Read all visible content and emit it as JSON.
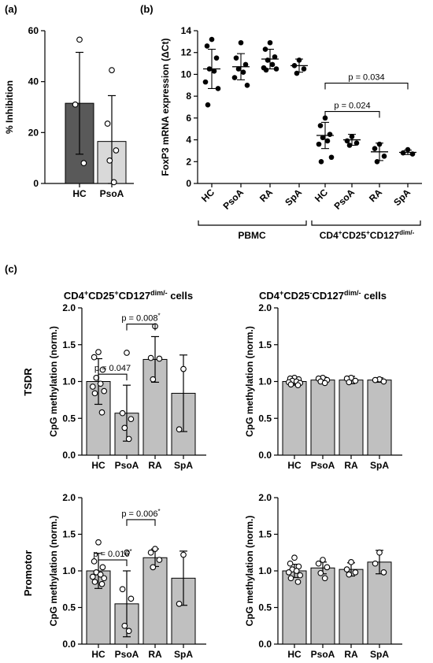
{
  "panel_labels": {
    "a": "(a)",
    "b": "(b)",
    "c": "(c)"
  },
  "row_labels": {
    "tsdr": "TSDR",
    "promotor": "Promotor"
  },
  "column_titles": {
    "left": {
      "prefix": "CD4",
      "sup1": "+",
      "mid1": "CD25",
      "sup2": "+",
      "mid2": "CD127",
      "sup3": "dim/-",
      "suffix": " cells"
    },
    "right": {
      "prefix": "CD4",
      "sup1": "+",
      "mid1": "CD25",
      "sup2": "-",
      "mid2": "CD127",
      "sup3": "dim/-",
      "suffix": " cells"
    }
  },
  "group_labels_b": {
    "pbmc": "PBMC",
    "sorted": {
      "prefix": "CD4",
      "sup1": "+",
      "mid1": "CD25",
      "sup2": "+",
      "mid2": "CD127",
      "sup3": "dim/-"
    }
  },
  "colors": {
    "hc_dark": "#595959",
    "light": "#d9d9d9",
    "bar_gray": "#c0c0c0",
    "axis": "#000000"
  },
  "chart_data": [
    {
      "id": "a",
      "type": "bar",
      "ylabel": "% Inhibition",
      "ylim": [
        0,
        60
      ],
      "yticks": [
        0,
        20,
        40,
        60
      ],
      "categories": [
        "HC",
        "PsoA"
      ],
      "values": [
        31.5,
        16.5
      ],
      "sd": [
        20,
        18
      ],
      "bar_colors": [
        "#595959",
        "#d9d9d9"
      ],
      "points": [
        [
          56.5,
          31,
          8
        ],
        [
          44.5,
          23.5,
          13,
          9,
          0.5
        ]
      ],
      "brackets": []
    },
    {
      "id": "b",
      "type": "scatter",
      "ylabel": "FoxP3 mRNA expression (ΔCt)",
      "ylim": [
        0,
        14
      ],
      "yticks": [
        0,
        2,
        4,
        6,
        8,
        10,
        12,
        14
      ],
      "categories": [
        "HC",
        "PsoA",
        "RA",
        "SpA",
        "HC",
        "PsoA",
        "RA",
        "SpA"
      ],
      "means": [
        10.5,
        10.7,
        11.4,
        10.8,
        4.4,
        4.0,
        2.9,
        2.85
      ],
      "sd": [
        1.8,
        1.2,
        0.9,
        0.6,
        1.2,
        0.5,
        0.8,
        0.2
      ],
      "points": [
        [
          13.2,
          12.6,
          11.5,
          10.5,
          10.3,
          9.3,
          8.7,
          7.2
        ],
        [
          12.9,
          11.5,
          10.9,
          10.5,
          10.2,
          9.7,
          9.0
        ],
        [
          12.9,
          12.3,
          11.6,
          11.3,
          10.9,
          10.6,
          10.5,
          10.4
        ],
        [
          11.3,
          10.8,
          10.5,
          10.1
        ],
        [
          6.0,
          5.3,
          4.5,
          4.2,
          3.9,
          3.6,
          2.4,
          2.0
        ],
        [
          4.3,
          3.9,
          3.7,
          3.5
        ],
        [
          3.6,
          3.2,
          2.5,
          2.0
        ],
        [
          3.1,
          2.8,
          2.7
        ]
      ],
      "brackets": [
        {
          "from": 4,
          "to": 7,
          "y": 9.2,
          "label": "p = 0.034"
        },
        {
          "from": 4,
          "to": 6,
          "y": 6.6,
          "label": "p = 0.024"
        }
      ]
    },
    {
      "id": "c1",
      "type": "bar",
      "ylabel": "CpG methylation (norm.)",
      "ylim": [
        0,
        2
      ],
      "yticks": [
        0.0,
        0.5,
        1.0,
        1.5,
        2.0
      ],
      "tick_labels": [
        "0.0",
        "0.5",
        "1.0",
        "1.5",
        "2.0"
      ],
      "categories": [
        "HC",
        "PsoA",
        "RA",
        "SpA"
      ],
      "values": [
        1.0,
        0.57,
        1.3,
        0.84
      ],
      "sd": [
        0.31,
        0.38,
        0.31,
        0.52
      ],
      "points": [
        [
          1.4,
          1.33,
          1.16,
          1.05,
          0.97,
          0.93,
          0.87,
          0.84,
          0.58
        ],
        [
          1.39,
          0.57,
          0.49,
          0.37,
          0.22
        ],
        [
          1.75,
          1.32,
          1.31,
          1.03
        ],
        [
          1.17,
          0.35
        ]
      ],
      "brackets": [
        {
          "from": 0,
          "to": 1,
          "y": 1.1,
          "label": "p = 0.047",
          "star": ""
        },
        {
          "from": 1,
          "to": 2,
          "y": 1.78,
          "label": "p = 0.008",
          "star": "*"
        }
      ]
    },
    {
      "id": "c2",
      "type": "bar",
      "ylabel": "CpG methylation (norm.)",
      "ylim": [
        0,
        2
      ],
      "yticks": [
        0.0,
        0.5,
        1.0,
        1.5,
        2.0
      ],
      "tick_labels": [
        "0.0",
        "0.5",
        "1.0",
        "1.5",
        "2.0"
      ],
      "categories": [
        "HC",
        "PsoA",
        "RA",
        "SpA"
      ],
      "values": [
        1.0,
        1.02,
        1.02,
        1.02
      ],
      "sd": [
        0.05,
        0.04,
        0.05,
        0.03
      ],
      "points": [
        [
          1.05,
          1.04,
          1.03,
          1.01,
          1.0,
          0.99,
          0.98,
          0.96,
          0.95
        ],
        [
          1.05,
          1.04,
          1.02,
          1.0,
          0.98
        ],
        [
          1.05,
          1.04,
          1.01,
          0.99
        ],
        [
          1.03,
          1.02,
          1.0
        ]
      ],
      "brackets": []
    },
    {
      "id": "c3",
      "type": "bar",
      "ylabel": "CpG methylation (norm.)",
      "ylim": [
        0,
        2
      ],
      "yticks": [
        0.0,
        0.5,
        1.0,
        1.5,
        2.0
      ],
      "tick_labels": [
        "0.0",
        "0.5",
        "1.0",
        "1.5",
        "2.0"
      ],
      "categories": [
        "HC",
        "PsoA",
        "RA",
        "SpA"
      ],
      "values": [
        1.0,
        0.55,
        1.18,
        0.9
      ],
      "sd": [
        0.24,
        0.45,
        0.12,
        0.37
      ],
      "points": [
        [
          1.39,
          1.13,
          1.05,
          0.98,
          0.95,
          0.92,
          0.9,
          0.85,
          0.82
        ],
        [
          1.25,
          0.75,
          0.62,
          0.25,
          0.18
        ],
        [
          1.3,
          1.25,
          1.15,
          1.05
        ],
        [
          1.22,
          0.55
        ]
      ],
      "brackets": [
        {
          "from": 0,
          "to": 1,
          "y": 1.15,
          "label": "p = 0.016",
          "star": "*"
        },
        {
          "from": 1,
          "to": 2,
          "y": 1.7,
          "label": "p = 0.006",
          "star": "*"
        }
      ]
    },
    {
      "id": "c4",
      "type": "bar",
      "ylabel": "CpG methylation (norm.)",
      "ylim": [
        0,
        2
      ],
      "yticks": [
        0.0,
        0.5,
        1.0,
        1.5,
        2.0
      ],
      "tick_labels": [
        "0.0",
        "0.5",
        "1.0",
        "1.5",
        "2.0"
      ],
      "categories": [
        "HC",
        "PsoA",
        "RA",
        "SpA"
      ],
      "values": [
        1.0,
        1.04,
        1.02,
        1.12
      ],
      "sd": [
        0.09,
        0.08,
        0.09,
        0.16
      ],
      "points": [
        [
          1.18,
          1.1,
          1.06,
          1.02,
          1.0,
          0.98,
          0.94,
          0.9,
          0.85
        ],
        [
          1.15,
          1.1,
          1.05,
          0.97,
          0.9
        ],
        [
          1.12,
          1.02,
          0.98,
          0.95
        ],
        [
          1.25,
          1.1,
          0.98
        ]
      ],
      "brackets": []
    }
  ]
}
